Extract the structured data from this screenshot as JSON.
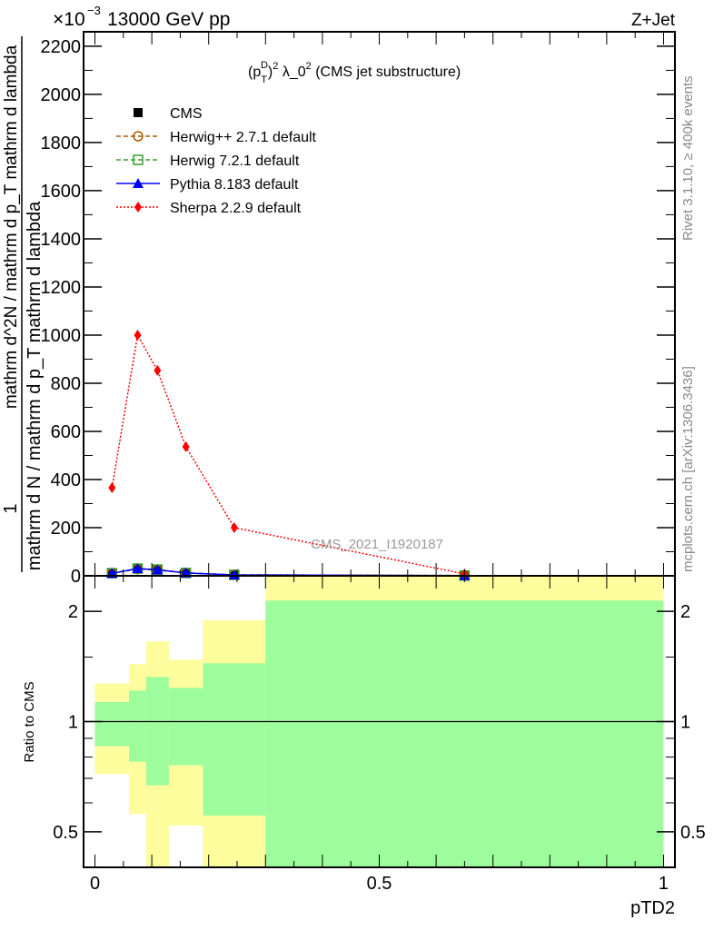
{
  "chart_data": {
    "type": "line",
    "header_left": "13000 GeV pp",
    "header_right": "Z+Jet",
    "multiplier": "×10",
    "multiplier_exp": "−3",
    "title": "(p_T^D)^2 λ_0^2 (CMS jet substructure)",
    "title_parts": {
      "p": "(p",
      "sub": "T",
      "sup": "D",
      "close": ")",
      "sq": "2",
      "lam": " λ_0",
      "sq2": "2",
      "rest": " (CMS jet substructure)"
    },
    "ylabel_num": "1",
    "ylabel_den": "mathrm d N / mathrm d p_T mathrm d lambda",
    "ylabel_inner": "mathrm d^2N / mathrm d p_T mathrm d lambda",
    "xlabel": "pTD2",
    "ratio_ylabel": "Ratio to CMS",
    "side_label_top": "Rivet 3.1.10, ≥ 400k events",
    "side_label_bottom": "mcplots.cern.ch [arXiv:1306.3436]",
    "watermark": "CMS_2021_I1920187",
    "xlim": [
      -0.02,
      1.02
    ],
    "ylim": [
      0,
      2260
    ],
    "yticks": [
      0,
      200,
      400,
      600,
      800,
      1000,
      1200,
      1400,
      1600,
      1800,
      2000,
      2200
    ],
    "xticks": [
      0,
      0.5,
      1
    ],
    "xtick_labels": [
      "0",
      "0.5",
      "1"
    ],
    "ratio_ylim": [
      0.4,
      2.5
    ],
    "ratio_yticks": [
      0.5,
      1,
      2
    ],
    "ratio_ytick_labels": [
      "0.5",
      "1",
      "2"
    ],
    "bin_edges": [
      0,
      0.06,
      0.09,
      0.13,
      0.19,
      0.3,
      1.0
    ],
    "x": [
      0.03,
      0.075,
      0.11,
      0.16,
      0.245,
      0.65
    ],
    "series": [
      {
        "name": "CMS",
        "color": "#000000",
        "marker": "square",
        "style": "none",
        "values": [
          10,
          30,
          25,
          12,
          4,
          1
        ]
      },
      {
        "name": "Herwig++ 2.7.1 default",
        "color": "#b35900",
        "marker": "circle-open",
        "style": "dashed",
        "values": [
          10,
          28,
          24,
          12,
          4,
          1
        ]
      },
      {
        "name": "Herwig 7.2.1 default",
        "color": "#33a02c",
        "marker": "square-open",
        "style": "dashed",
        "values": [
          11,
          30,
          26,
          12,
          4,
          1
        ]
      },
      {
        "name": "Pythia 8.183 default",
        "color": "#0000ff",
        "marker": "triangle",
        "style": "solid",
        "values": [
          10,
          30,
          25,
          12,
          4,
          1
        ]
      },
      {
        "name": "Sherpa 2.2.9 default",
        "color": "#ff0000",
        "marker": "diamond",
        "style": "dotted",
        "values": [
          366,
          1000,
          853,
          536,
          200,
          8
        ]
      }
    ],
    "ratio_bands": {
      "inner_color": "#9dfd9d",
      "outer_color": "#fdfd9d",
      "inner_low": [
        0.857,
        0.777,
        0.67,
        0.76,
        0.554,
        0.3
      ],
      "inner_high": [
        1.13,
        1.215,
        1.324,
        1.236,
        1.443,
        2.14
      ],
      "outer_low": [
        0.72,
        0.56,
        0.3,
        0.52,
        0.3,
        0.3
      ],
      "outer_high": [
        1.27,
        1.435,
        1.655,
        1.476,
        1.89,
        3.0
      ]
    }
  }
}
